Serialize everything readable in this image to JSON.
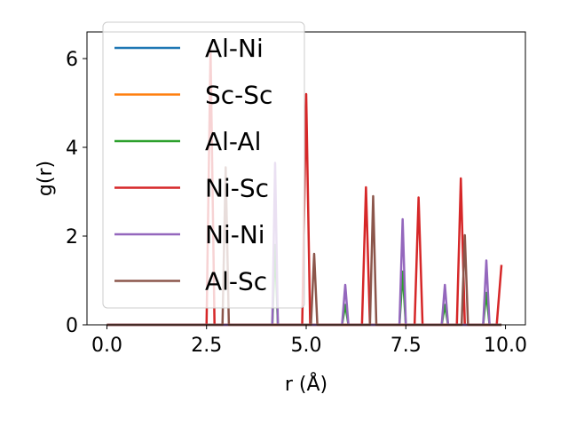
{
  "chart_data": {
    "type": "line",
    "xlabel": "r (Å)",
    "ylabel": "g(r)",
    "xlim": [
      -0.5,
      10.5
    ],
    "ylim": [
      0,
      6.6
    ],
    "x_ticks": [
      0.0,
      2.5,
      5.0,
      7.5,
      10.0
    ],
    "x_tick_labels": [
      "0.0",
      "2.5",
      "5.0",
      "7.5",
      "10.0"
    ],
    "y_ticks": [
      0,
      2,
      4,
      6
    ],
    "y_tick_labels": [
      "0",
      "2",
      "4",
      "6"
    ],
    "grid": false,
    "legend_position": "top-left",
    "series": [
      {
        "name": "Al-Ni",
        "color": "#1f77b4",
        "points": [
          [
            0,
            0
          ],
          [
            9.9,
            0
          ]
        ]
      },
      {
        "name": "Sc-Sc",
        "color": "#ff7f0e",
        "points": [
          [
            0,
            0
          ],
          [
            9.9,
            0
          ]
        ]
      },
      {
        "name": "Al-Al",
        "color": "#2ca02c",
        "points": [
          [
            0,
            0
          ],
          [
            4.15,
            0
          ],
          [
            4.22,
            1.8
          ],
          [
            4.29,
            0
          ],
          [
            5.9,
            0
          ],
          [
            5.98,
            0.45
          ],
          [
            6.06,
            0
          ],
          [
            7.34,
            0
          ],
          [
            7.42,
            1.2
          ],
          [
            7.5,
            0
          ],
          [
            8.4,
            0
          ],
          [
            8.48,
            0.45
          ],
          [
            8.56,
            0
          ],
          [
            9.44,
            0
          ],
          [
            9.52,
            0.72
          ],
          [
            9.6,
            0
          ],
          [
            9.9,
            0
          ]
        ]
      },
      {
        "name": "Ni-Sc",
        "color": "#d62728",
        "points": [
          [
            0,
            0
          ],
          [
            2.5,
            0
          ],
          [
            2.6,
            6.2
          ],
          [
            2.7,
            0
          ],
          [
            4.9,
            0
          ],
          [
            5.0,
            5.2
          ],
          [
            5.1,
            0
          ],
          [
            6.4,
            0
          ],
          [
            6.5,
            3.1
          ],
          [
            6.6,
            0
          ],
          [
            7.72,
            0
          ],
          [
            7.82,
            2.87
          ],
          [
            7.92,
            0
          ],
          [
            8.78,
            0
          ],
          [
            8.88,
            3.3
          ],
          [
            8.98,
            0
          ],
          [
            9.78,
            0
          ],
          [
            9.9,
            1.35
          ]
        ]
      },
      {
        "name": "Ni-Ni",
        "color": "#9467bd",
        "points": [
          [
            0,
            0
          ],
          [
            4.15,
            0
          ],
          [
            4.22,
            3.65
          ],
          [
            4.29,
            0
          ],
          [
            5.9,
            0
          ],
          [
            5.98,
            0.9
          ],
          [
            6.06,
            0
          ],
          [
            7.34,
            0
          ],
          [
            7.42,
            2.38
          ],
          [
            7.5,
            0
          ],
          [
            8.4,
            0
          ],
          [
            8.48,
            0.9
          ],
          [
            8.56,
            0
          ],
          [
            9.44,
            0
          ],
          [
            9.52,
            1.45
          ],
          [
            9.6,
            0
          ],
          [
            9.9,
            0
          ]
        ]
      },
      {
        "name": "Al-Sc",
        "color": "#8c564b",
        "points": [
          [
            0,
            0
          ],
          [
            2.9,
            0
          ],
          [
            2.98,
            3.55
          ],
          [
            3.06,
            0
          ],
          [
            5.12,
            0
          ],
          [
            5.2,
            1.6
          ],
          [
            5.28,
            0
          ],
          [
            6.6,
            0
          ],
          [
            6.68,
            2.9
          ],
          [
            6.76,
            0
          ],
          [
            8.9,
            0
          ],
          [
            8.98,
            2.02
          ],
          [
            9.06,
            0
          ],
          [
            9.9,
            0
          ]
        ]
      }
    ]
  }
}
